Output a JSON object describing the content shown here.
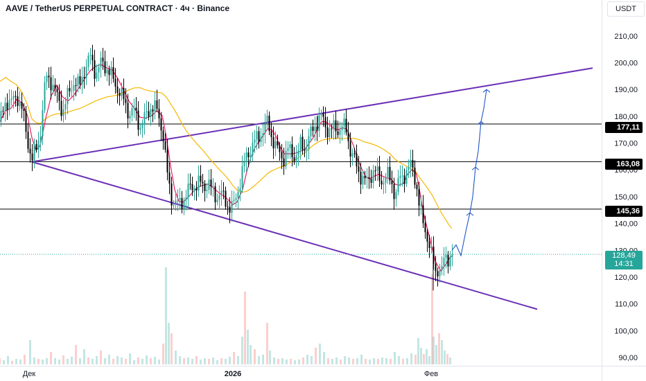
{
  "header": {
    "title": "AAVE / TetherUS PERPETUAL CONTRACT · 4ч · Binance",
    "currency": "USDT"
  },
  "price_tags": {
    "level_177": "177,11",
    "level_163": "163,08",
    "level_145": "145,36",
    "current_price": "128,49",
    "countdown": "14:31"
  },
  "colors": {
    "up": "#26a69a",
    "down": "#000000",
    "ma_fast": "#e91e63",
    "ma_slow": "#f5b700",
    "trendline": "#6a2fb5",
    "projection": "#1e56c8",
    "current_price": "#26a69a"
  },
  "chart_data": {
    "type": "candlestick",
    "symbol": "AAVE / TetherUS PERPETUAL CONTRACT",
    "timeframe": "4ч",
    "exchange": "Binance",
    "y_axis": {
      "ticks": [
        90,
        100,
        110,
        120,
        130,
        140,
        150,
        160,
        170,
        180,
        190,
        200,
        210
      ],
      "tick_labels": [
        "90,00",
        "100,00",
        "110,00",
        "120,00",
        "130,00",
        "140,00",
        "150,00",
        "160,00",
        "170,00",
        "180,00",
        "190,00",
        "200,00",
        "210,00"
      ],
      "range": [
        88,
        214
      ]
    },
    "x_axis": {
      "labels": [
        "Дек",
        "2026",
        "Фев"
      ]
    },
    "close_path": [
      [
        0,
        178
      ],
      [
        8,
        186
      ],
      [
        16,
        185
      ],
      [
        24,
        188
      ],
      [
        32,
        182
      ],
      [
        40,
        170
      ],
      [
        46,
        164
      ],
      [
        52,
        168
      ],
      [
        58,
        175
      ],
      [
        66,
        195
      ],
      [
        74,
        193
      ],
      [
        82,
        187
      ],
      [
        90,
        182
      ],
      [
        98,
        188
      ],
      [
        106,
        193
      ],
      [
        114,
        191
      ],
      [
        122,
        198
      ],
      [
        130,
        202
      ],
      [
        138,
        196
      ],
      [
        146,
        200
      ],
      [
        154,
        198
      ],
      [
        162,
        194
      ],
      [
        170,
        190
      ],
      [
        178,
        186
      ],
      [
        186,
        181
      ],
      [
        194,
        182
      ],
      [
        202,
        176
      ],
      [
        210,
        180
      ],
      [
        218,
        184
      ],
      [
        226,
        182
      ],
      [
        234,
        175
      ],
      [
        240,
        160
      ],
      [
        246,
        150
      ],
      [
        252,
        148
      ],
      [
        258,
        147
      ],
      [
        264,
        149
      ],
      [
        270,
        152
      ],
      [
        278,
        154
      ],
      [
        286,
        155
      ],
      [
        294,
        154
      ],
      [
        300,
        155
      ],
      [
        306,
        152
      ],
      [
        312,
        150
      ],
      [
        318,
        151
      ],
      [
        324,
        149
      ],
      [
        330,
        146
      ],
      [
        336,
        146
      ],
      [
        342,
        152
      ],
      [
        350,
        160
      ],
      [
        356,
        166
      ],
      [
        362,
        168
      ],
      [
        368,
        171
      ],
      [
        374,
        173
      ],
      [
        380,
        175
      ],
      [
        386,
        178
      ],
      [
        392,
        172
      ],
      [
        398,
        168
      ],
      [
        404,
        166
      ],
      [
        410,
        164
      ],
      [
        416,
        168
      ],
      [
        422,
        166
      ],
      [
        428,
        165
      ],
      [
        434,
        170
      ],
      [
        440,
        168
      ],
      [
        446,
        172
      ],
      [
        452,
        176
      ],
      [
        458,
        178
      ],
      [
        464,
        180
      ],
      [
        470,
        176
      ],
      [
        476,
        174
      ],
      [
        482,
        176
      ],
      [
        488,
        175
      ],
      [
        494,
        176
      ],
      [
        500,
        175
      ],
      [
        504,
        168
      ],
      [
        510,
        164
      ],
      [
        516,
        160
      ],
      [
        522,
        157
      ],
      [
        528,
        155
      ],
      [
        534,
        158
      ],
      [
        540,
        160
      ],
      [
        546,
        157
      ],
      [
        552,
        156
      ],
      [
        558,
        158
      ],
      [
        564,
        156
      ],
      [
        570,
        150
      ],
      [
        576,
        157
      ],
      [
        582,
        158
      ],
      [
        588,
        160
      ],
      [
        594,
        162
      ],
      [
        600,
        155
      ],
      [
        604,
        147
      ],
      [
        608,
        142
      ],
      [
        612,
        139
      ],
      [
        616,
        135
      ],
      [
        620,
        130
      ],
      [
        624,
        126
      ],
      [
        628,
        122
      ],
      [
        632,
        124
      ],
      [
        636,
        121
      ],
      [
        640,
        126
      ],
      [
        644,
        128
      ],
      [
        648,
        127
      ],
      [
        652,
        128.5
      ]
    ],
    "volume": [
      [
        0,
        9
      ],
      [
        6,
        6
      ],
      [
        12,
        12
      ],
      [
        18,
        5
      ],
      [
        24,
        8
      ],
      [
        30,
        7
      ],
      [
        36,
        14
      ],
      [
        44,
        35
      ],
      [
        50,
        10
      ],
      [
        56,
        8
      ],
      [
        62,
        7
      ],
      [
        68,
        9
      ],
      [
        74,
        18
      ],
      [
        80,
        9
      ],
      [
        86,
        7
      ],
      [
        92,
        13
      ],
      [
        98,
        8
      ],
      [
        104,
        11
      ],
      [
        110,
        28
      ],
      [
        116,
        9
      ],
      [
        122,
        22
      ],
      [
        128,
        10
      ],
      [
        134,
        8
      ],
      [
        140,
        12
      ],
      [
        146,
        20
      ],
      [
        152,
        9
      ],
      [
        158,
        14
      ],
      [
        164,
        8
      ],
      [
        170,
        12
      ],
      [
        176,
        10
      ],
      [
        182,
        8
      ],
      [
        188,
        16
      ],
      [
        194,
        6
      ],
      [
        200,
        10
      ],
      [
        206,
        8
      ],
      [
        212,
        13
      ],
      [
        218,
        9
      ],
      [
        224,
        11
      ],
      [
        230,
        7
      ],
      [
        236,
        30
      ],
      [
        240,
        140
      ],
      [
        244,
        60
      ],
      [
        248,
        45
      ],
      [
        254,
        20
      ],
      [
        260,
        12
      ],
      [
        266,
        9
      ],
      [
        272,
        10
      ],
      [
        278,
        8
      ],
      [
        284,
        12
      ],
      [
        290,
        7
      ],
      [
        296,
        9
      ],
      [
        302,
        8
      ],
      [
        308,
        10
      ],
      [
        314,
        6
      ],
      [
        320,
        9
      ],
      [
        326,
        8
      ],
      [
        332,
        11
      ],
      [
        338,
        18
      ],
      [
        344,
        12
      ],
      [
        350,
        40
      ],
      [
        354,
        105
      ],
      [
        358,
        50
      ],
      [
        362,
        28
      ],
      [
        368,
        22
      ],
      [
        374,
        12
      ],
      [
        380,
        14
      ],
      [
        386,
        60
      ],
      [
        390,
        20
      ],
      [
        396,
        10
      ],
      [
        402,
        8
      ],
      [
        408,
        9
      ],
      [
        414,
        7
      ],
      [
        420,
        8
      ],
      [
        426,
        6
      ],
      [
        432,
        7
      ],
      [
        438,
        10
      ],
      [
        444,
        14
      ],
      [
        450,
        12
      ],
      [
        456,
        24
      ],
      [
        462,
        30
      ],
      [
        468,
        18
      ],
      [
        474,
        9
      ],
      [
        480,
        8
      ],
      [
        486,
        10
      ],
      [
        492,
        7
      ],
      [
        498,
        12
      ],
      [
        504,
        10
      ],
      [
        510,
        8
      ],
      [
        516,
        9
      ],
      [
        522,
        14
      ],
      [
        528,
        8
      ],
      [
        534,
        7
      ],
      [
        540,
        9
      ],
      [
        546,
        8
      ],
      [
        552,
        10
      ],
      [
        558,
        9
      ],
      [
        564,
        8
      ],
      [
        570,
        18
      ],
      [
        576,
        12
      ],
      [
        582,
        8
      ],
      [
        588,
        9
      ],
      [
        594,
        16
      ],
      [
        600,
        14
      ],
      [
        604,
        38
      ],
      [
        608,
        24
      ],
      [
        612,
        15
      ],
      [
        616,
        22
      ],
      [
        620,
        12
      ],
      [
        624,
        130
      ],
      [
        626,
        40
      ],
      [
        630,
        28
      ],
      [
        634,
        45
      ],
      [
        638,
        35
      ],
      [
        642,
        20
      ],
      [
        646,
        15
      ],
      [
        650,
        10
      ]
    ],
    "horizontal_levels": [
      177.11,
      163.08,
      145.36
    ],
    "current_price": 128.49,
    "trendlines": [
      {
        "from": [
          46,
          163
        ],
        "to": [
          855,
          198
        ]
      },
      {
        "from": [
          46,
          163
        ],
        "to": [
          775,
          108
        ]
      }
    ],
    "projection_path": [
      [
        652,
        130
      ],
      [
        658,
        132
      ],
      [
        665,
        128
      ],
      [
        672,
        137
      ],
      [
        678,
        144
      ],
      [
        682,
        150
      ],
      [
        686,
        161
      ],
      [
        690,
        167
      ],
      [
        694,
        178
      ],
      [
        698,
        183
      ],
      [
        702,
        190
      ]
    ],
    "projection_arrow_tips": [
      [
        678,
        144
      ],
      [
        686,
        161
      ],
      [
        694,
        178
      ],
      [
        702,
        190
      ]
    ]
  }
}
